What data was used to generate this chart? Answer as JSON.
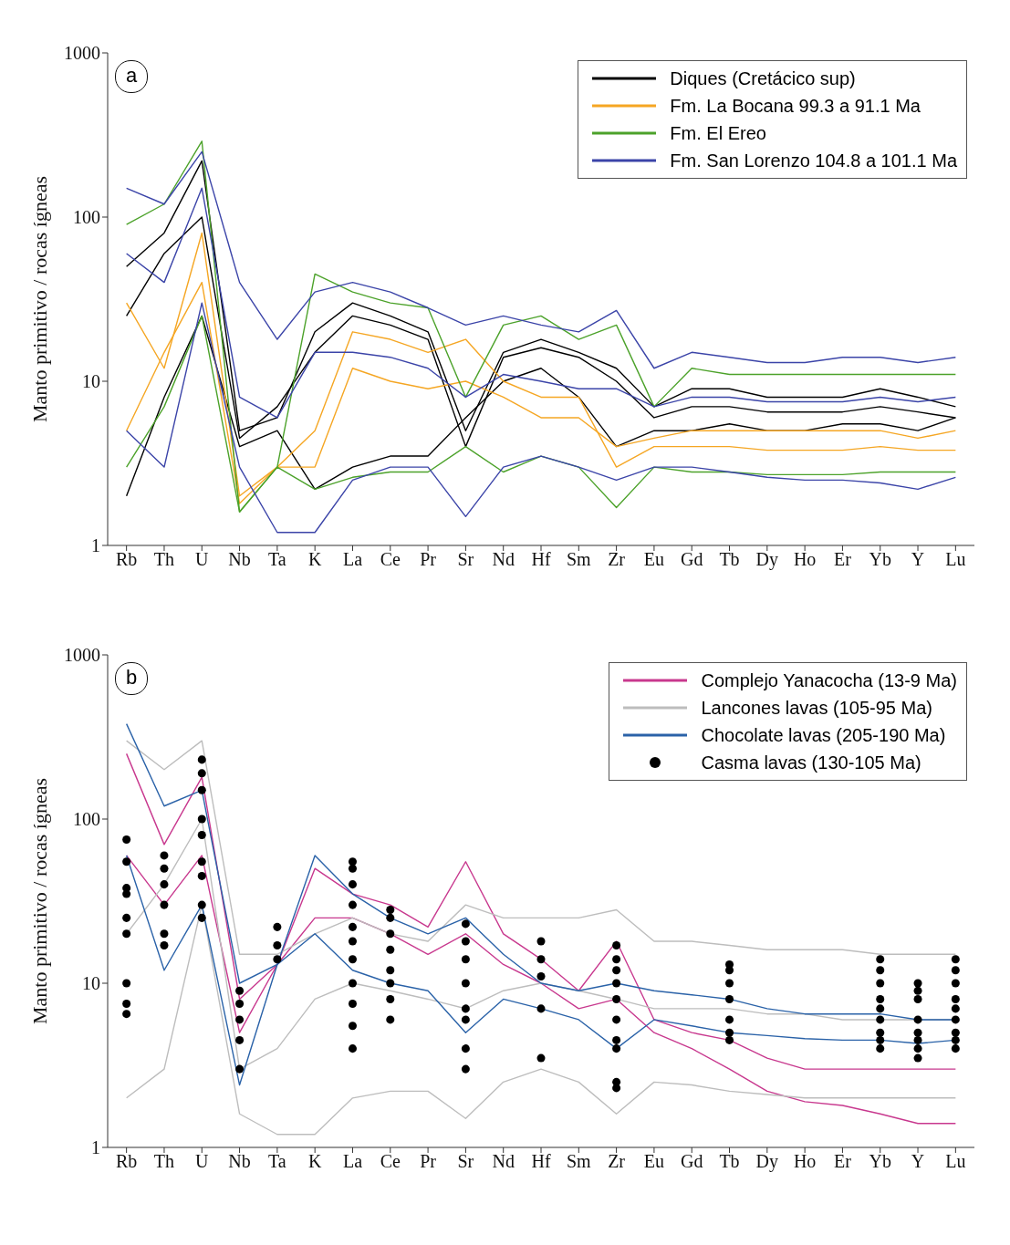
{
  "chart_data": [
    {
      "type": "line",
      "ylabel": "Manto primitivo / rocas ígneas",
      "annotations": [
        "a"
      ],
      "log": true,
      "ylim": [
        1,
        1000
      ],
      "yticks": [
        1,
        10,
        100,
        1000
      ],
      "legend": "top right",
      "categories": [
        "Rb",
        "Th",
        "U",
        "Nb",
        "Ta",
        "K",
        "La",
        "Ce",
        "Pr",
        "Sr",
        "Nd",
        "Hf",
        "Sm",
        "Zr",
        "Eu",
        "Gd",
        "Tb",
        "Dy",
        "Ho",
        "Er",
        "Yb",
        "Y",
        "Lu"
      ],
      "series": [
        {
          "name": "Diques (Cretácico sup)",
          "color": "#000000",
          "values": [
            50,
            80,
            220,
            5,
            6,
            20,
            30,
            25,
            20,
            5,
            15,
            18,
            15,
            12,
            7,
            9,
            9,
            8,
            8,
            8,
            9,
            8,
            7
          ]
        },
        {
          "color": "#000000",
          "values": [
            2,
            8,
            25,
            4,
            5,
            2.2,
            3,
            3.5,
            3.5,
            6,
            10,
            12,
            8,
            4,
            5,
            5,
            5.5,
            5,
            5,
            5.5,
            5.5,
            5,
            6
          ]
        },
        {
          "color": "#000000",
          "values": [
            25,
            60,
            100,
            4.5,
            7,
            15,
            25,
            22,
            18,
            4,
            14,
            16,
            14,
            10,
            6,
            7,
            7,
            6.5,
            6.5,
            6.5,
            7,
            6.5,
            6
          ]
        },
        {
          "name": "Fm. La Bocana 99.3 a 91.1 Ma",
          "color": "#f5a623",
          "values": [
            30,
            12,
            80,
            2,
            3,
            3,
            12,
            10,
            9,
            10,
            8,
            6,
            6,
            4,
            4.5,
            5,
            5,
            5,
            5,
            5,
            5,
            4.5,
            5
          ]
        },
        {
          "color": "#f5a623",
          "values": [
            5,
            15,
            40,
            1.8,
            3,
            5,
            20,
            18,
            15,
            18,
            10,
            8,
            8,
            3,
            4,
            4,
            4,
            3.8,
            3.8,
            3.8,
            4,
            3.8,
            3.8
          ]
        },
        {
          "name": "Fm. El Ereo",
          "color": "#4ca22a",
          "values": [
            90,
            120,
            290,
            1.6,
            3,
            45,
            35,
            30,
            28,
            8,
            22,
            25,
            18,
            22,
            7,
            12,
            11,
            11,
            11,
            11,
            11,
            11,
            11
          ]
        },
        {
          "color": "#4ca22a",
          "values": [
            3,
            7,
            25,
            1.6,
            3,
            2.2,
            2.6,
            2.8,
            2.8,
            4,
            2.8,
            3.5,
            3,
            1.7,
            3,
            2.8,
            2.8,
            2.7,
            2.7,
            2.7,
            2.8,
            2.8,
            2.8
          ]
        },
        {
          "name": "Fm. San Lorenzo 104.8 a 101.1 Ma",
          "color": "#3b44a8",
          "values": [
            150,
            120,
            250,
            40,
            18,
            35,
            40,
            35,
            28,
            22,
            25,
            22,
            20,
            27,
            12,
            15,
            14,
            13,
            13,
            14,
            14,
            13,
            14
          ]
        },
        {
          "color": "#3b44a8",
          "values": [
            5,
            3,
            30,
            3,
            1.2,
            1.2,
            2.5,
            3,
            3,
            1.5,
            3,
            3.5,
            3,
            2.5,
            3,
            3,
            2.8,
            2.6,
            2.5,
            2.5,
            2.4,
            2.2,
            2.6
          ]
        },
        {
          "color": "#3b44a8",
          "values": [
            60,
            40,
            150,
            8,
            6,
            15,
            15,
            14,
            12,
            8,
            11,
            10,
            9,
            9,
            7,
            8,
            8,
            7.5,
            7.5,
            7.5,
            8,
            7.5,
            8
          ]
        }
      ]
    },
    {
      "type": "line",
      "ylabel": "Manto primitivo / rocas ígneas",
      "annotations": [
        "b"
      ],
      "log": true,
      "ylim": [
        1,
        1000
      ],
      "yticks": [
        1,
        10,
        100,
        1000
      ],
      "legend": "top right",
      "categories": [
        "Rb",
        "Th",
        "U",
        "Nb",
        "Ta",
        "K",
        "La",
        "Ce",
        "Pr",
        "Sr",
        "Nd",
        "Hf",
        "Sm",
        "Zr",
        "Eu",
        "Gd",
        "Tb",
        "Dy",
        "Ho",
        "Er",
        "Yb",
        "Y",
        "Lu"
      ],
      "series": [
        {
          "name": "Complejo Yanacocha (13-9 Ma)",
          "color": "#c8388e",
          "values": [
            250,
            70,
            180,
            8,
            13,
            50,
            35,
            30,
            22,
            55,
            20,
            14,
            9,
            18,
            6,
            5,
            4.5,
            3.5,
            3,
            3,
            3,
            3,
            3
          ]
        },
        {
          "color": "#c8388e",
          "values": [
            60,
            30,
            60,
            5,
            13,
            25,
            25,
            20,
            15,
            20,
            13,
            10,
            7,
            8,
            5,
            4,
            3,
            2.2,
            1.9,
            1.8,
            1.6,
            1.4,
            1.4
          ]
        },
        {
          "name": "Lancones lavas (105-95 Ma)",
          "color": "#bdbdbd",
          "values": [
            300,
            200,
            300,
            15,
            15,
            20,
            25,
            20,
            18,
            30,
            25,
            25,
            25,
            28,
            18,
            18,
            17,
            16,
            16,
            16,
            15,
            15,
            15
          ]
        },
        {
          "color": "#bdbdbd",
          "values": [
            2,
            3,
            30,
            1.6,
            1.2,
            1.2,
            2,
            2.2,
            2.2,
            1.5,
            2.5,
            3,
            2.5,
            1.6,
            2.5,
            2.4,
            2.2,
            2.1,
            2,
            2,
            2,
            2,
            2
          ]
        },
        {
          "color": "#bdbdbd",
          "values": [
            20,
            40,
            100,
            3,
            4,
            8,
            10,
            9,
            8,
            7,
            9,
            10,
            9,
            8,
            7,
            7,
            7,
            6.5,
            6.5,
            6,
            6,
            6,
            6
          ]
        },
        {
          "name": "Chocolate lavas (205-190 Ma)",
          "color": "#2a62a8",
          "values": [
            380,
            120,
            150,
            10,
            13,
            60,
            35,
            25,
            20,
            25,
            15,
            10,
            9,
            10,
            9,
            8.5,
            8,
            7,
            6.5,
            6.5,
            6.5,
            6,
            6
          ]
        },
        {
          "color": "#2a62a8",
          "values": [
            60,
            12,
            30,
            2.4,
            13,
            20,
            12,
            10,
            9,
            5,
            8,
            7,
            6,
            4,
            6,
            5.5,
            5,
            4.8,
            4.6,
            4.5,
            4.5,
            4.3,
            4.5
          ]
        },
        {
          "name": "Casma lavas (130-105 Ma)",
          "type": "scatter",
          "color": "#000000",
          "x": [
            "Rb",
            "Rb",
            "Rb",
            "Rb",
            "Rb",
            "Rb",
            "Rb",
            "Rb",
            "Rb",
            "Th",
            "Th",
            "Th",
            "Th",
            "Th",
            "Th",
            "U",
            "U",
            "U",
            "U",
            "U",
            "U",
            "U",
            "U",
            "U",
            "Nb",
            "Nb",
            "Nb",
            "Nb",
            "Nb",
            "Ta",
            "Ta",
            "Ta",
            "La",
            "La",
            "La",
            "La",
            "La",
            "La",
            "La",
            "La",
            "La",
            "La",
            "La",
            "Ce",
            "Ce",
            "Ce",
            "Ce",
            "Ce",
            "Ce",
            "Ce",
            "Ce",
            "Sr",
            "Sr",
            "Sr",
            "Sr",
            "Sr",
            "Sr",
            "Sr",
            "Sr",
            "Hf",
            "Hf",
            "Hf",
            "Hf",
            "Hf",
            "Zr",
            "Zr",
            "Zr",
            "Zr",
            "Zr",
            "Zr",
            "Zr",
            "Zr",
            "Zr",
            "Zr",
            "Tb",
            "Tb",
            "Tb",
            "Tb",
            "Tb",
            "Tb",
            "Tb",
            "Yb",
            "Yb",
            "Yb",
            "Yb",
            "Yb",
            "Yb",
            "Yb",
            "Yb",
            "Yb",
            "Y",
            "Y",
            "Y",
            "Y",
            "Y",
            "Y",
            "Y",
            "Y",
            "Lu",
            "Lu",
            "Lu",
            "Lu",
            "Lu",
            "Lu",
            "Lu",
            "Lu",
            "Lu"
          ],
          "values": [
            75,
            55,
            38,
            35,
            25,
            20,
            10,
            7.5,
            6.5,
            60,
            50,
            40,
            30,
            20,
            17,
            230,
            190,
            150,
            100,
            80,
            55,
            45,
            30,
            25,
            9,
            7.5,
            6,
            4.5,
            3,
            22,
            17,
            14,
            55,
            50,
            40,
            30,
            22,
            18,
            14,
            10,
            7.5,
            5.5,
            4,
            28,
            25,
            20,
            16,
            12,
            10,
            8,
            6,
            23,
            18,
            14,
            10,
            7,
            6,
            4,
            3,
            18,
            14,
            11,
            7,
            3.5,
            17,
            14,
            12,
            10,
            8,
            6,
            4.5,
            4,
            2.5,
            2.3,
            13,
            12,
            10,
            8,
            6,
            5,
            4.5,
            14,
            12,
            10,
            8,
            7,
            6,
            5,
            4.5,
            4,
            10,
            9,
            8,
            6,
            5,
            4.5,
            4,
            3.5,
            14,
            12,
            10,
            8,
            7,
            6,
            5,
            4.5,
            4
          ]
        }
      ]
    }
  ]
}
